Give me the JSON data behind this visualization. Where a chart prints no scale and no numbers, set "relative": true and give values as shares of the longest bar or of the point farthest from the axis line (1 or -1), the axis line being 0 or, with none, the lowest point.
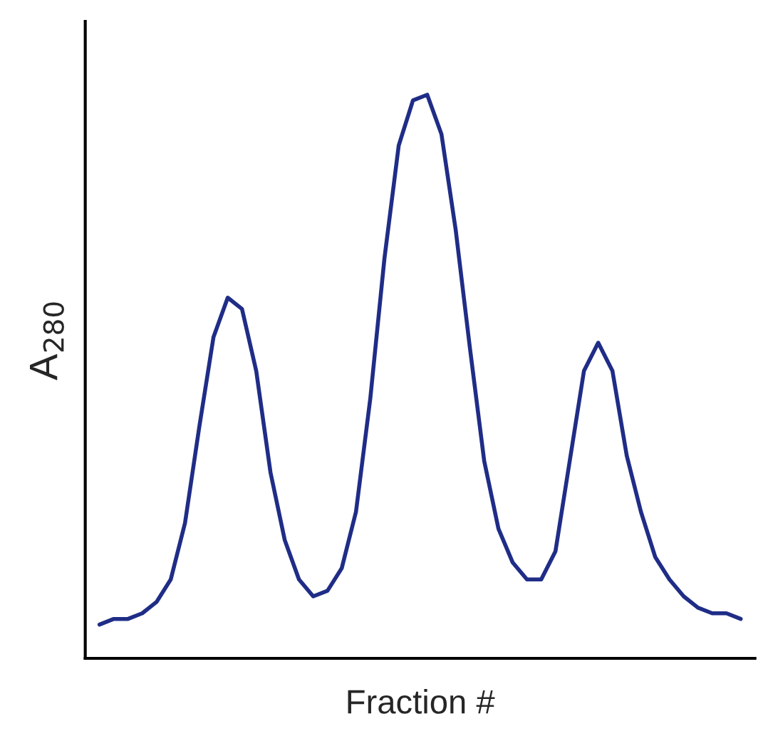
{
  "chart_data": {
    "type": "line",
    "relative": true,
    "xlabel": "Fraction #",
    "ylabel": "A$_{280}$",
    "categories": [
      null,
      null,
      null,
      null,
      null,
      null,
      null,
      null,
      null,
      null,
      null,
      null,
      null,
      null,
      null,
      null,
      null,
      null,
      null,
      null,
      null,
      null,
      null,
      null,
      null,
      null,
      null,
      null,
      null,
      null,
      null,
      null,
      null,
      null,
      null,
      null,
      null,
      null,
      null,
      null,
      null,
      null,
      null,
      null,
      null,
      null
    ],
    "series": [
      {
        "color": "#1f2d87",
        "values": [
          0.06,
          0.07,
          0.07,
          0.08,
          0.1,
          0.14,
          0.24,
          0.41,
          0.57,
          0.64,
          0.62,
          0.51,
          0.33,
          0.21,
          0.14,
          0.11,
          0.12,
          0.16,
          0.26,
          0.46,
          0.71,
          0.91,
          0.99,
          1.0,
          0.93,
          0.76,
          0.55,
          0.35,
          0.23,
          0.17,
          0.14,
          0.14,
          0.19,
          0.35,
          0.51,
          0.56,
          0.51,
          0.36,
          0.26,
          0.18,
          0.14,
          0.11,
          0.09,
          0.08,
          0.08,
          0.07
        ]
      }
    ],
    "grid": false,
    "legend": false,
    "marker": "none",
    "line_style": "solid"
  }
}
